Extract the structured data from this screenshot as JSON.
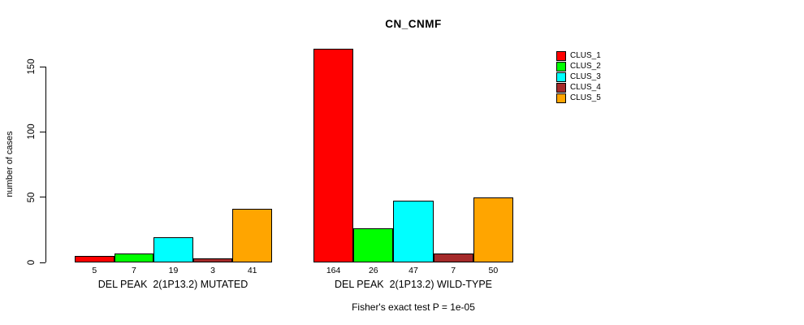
{
  "chart_data": {
    "type": "bar",
    "title": "CN_CNMF",
    "ylabel": "number of cases",
    "xlabel": "",
    "ylim": [
      0,
      150
    ],
    "yticks": [
      0,
      50,
      100,
      150
    ],
    "grid": false,
    "legend_position": "right",
    "legend": [
      "CLUS_1",
      "CLUS_2",
      "CLUS_3",
      "CLUS_4",
      "CLUS_5"
    ],
    "colors": [
      "#FF0000",
      "#00FF00",
      "#00FFFF",
      "#A52A2A",
      "#FFA500"
    ],
    "groups": [
      {
        "label": "DEL PEAK  2(1P13.2) MUTATED",
        "values": [
          5,
          7,
          19,
          3,
          41
        ]
      },
      {
        "label": "DEL PEAK  2(1P13.2) WILD-TYPE",
        "values": [
          164,
          26,
          47,
          7,
          50
        ]
      }
    ],
    "annotation": "Fisher's exact test P = 1e-05"
  }
}
